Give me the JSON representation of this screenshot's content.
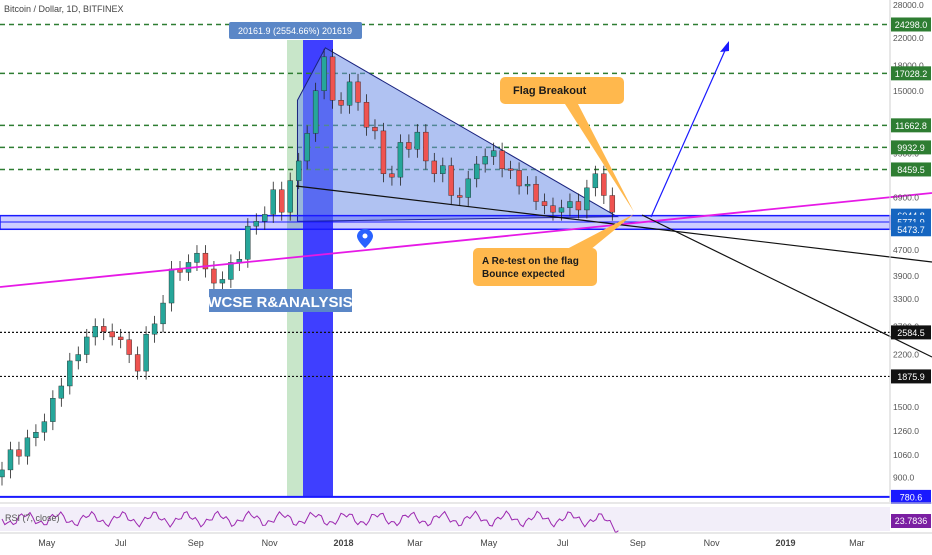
{
  "header": {
    "title": "Bitcoin / Dollar, 1D, BITFINEX"
  },
  "annotations": {
    "range_box": "20161.9 (2554.66%) 201619",
    "watermark": "WCSE R&ANALYSIS",
    "flag_breakout": "Flag Breakout",
    "retest_line1": "A Re-test on the flag",
    "retest_line2": "Bounce expected"
  },
  "indicator": {
    "label": "RSI (7, close)",
    "value": "23.7836"
  },
  "colors": {
    "background": "#ffffff",
    "candle_up": "#26a69a",
    "candle_down": "#ef5350",
    "grid_dash": "#2e7d32",
    "price_tag": "#2e7d32",
    "flag_fill": "#6f8fe8",
    "support_band": "#1a1aff",
    "trend_magenta": "#e619e6",
    "callout": "#ffb84d",
    "rsi_line": "#9c27b0"
  },
  "chart_data": {
    "type": "candlestick",
    "title": "Bitcoin / Dollar, 1D, BITFINEX",
    "y_scale": "log",
    "ylim": [
      780,
      28000
    ],
    "y_ticks": [
      "28000.0",
      "22000.0",
      "18000.0",
      "15000.0",
      "12000.0",
      "9500.0",
      "6900.0",
      "4700.0",
      "3900.0",
      "3300.0",
      "2700.0",
      "2200.0",
      "1500.0",
      "1260.0",
      "1060.0",
      "900.0"
    ],
    "x_ticks": [
      "May",
      "Jul",
      "Sep",
      "Nov",
      "2018",
      "Mar",
      "May",
      "Jul",
      "Sep",
      "Nov",
      "2019",
      "Mar"
    ],
    "horizontal_levels": [
      {
        "value": 24298.0,
        "label": "24298.0",
        "style": "dashed"
      },
      {
        "value": 17028.2,
        "label": "17028.2",
        "style": "dashed"
      },
      {
        "value": 11662.8,
        "label": "11662.8",
        "style": "dashed"
      },
      {
        "value": 9932.9,
        "label": "9932.9",
        "style": "dashed"
      },
      {
        "value": 8459.5,
        "label": "8459.5",
        "style": "dashed"
      },
      {
        "value": 6044.8,
        "label": "6044.8",
        "style": "band"
      },
      {
        "value": 5771.9,
        "label": "5771.9",
        "style": "band"
      },
      {
        "value": 5473.7,
        "label": "5473.7",
        "style": "band"
      },
      {
        "value": 2584.5,
        "label": "2584.5",
        "style": "dotted"
      },
      {
        "value": 1875.9,
        "label": "1875.9",
        "style": "dotted"
      },
      {
        "value": 780.6,
        "label": "780.6",
        "style": "solid"
      }
    ],
    "series": [
      {
        "name": "BTCUSD",
        "dates": [
          "2017-03-25",
          "2017-04-01",
          "2017-04-08",
          "2017-04-15",
          "2017-04-22",
          "2017-04-29",
          "2017-05-06",
          "2017-05-13",
          "2017-05-20",
          "2017-05-27",
          "2017-06-03",
          "2017-06-10",
          "2017-06-17",
          "2017-06-24",
          "2017-07-01",
          "2017-07-08",
          "2017-07-15",
          "2017-07-22",
          "2017-07-29",
          "2017-08-05",
          "2017-08-12",
          "2017-08-19",
          "2017-08-26",
          "2017-09-02",
          "2017-09-09",
          "2017-09-16",
          "2017-09-23",
          "2017-09-30",
          "2017-10-07",
          "2017-10-14",
          "2017-10-21",
          "2017-10-28",
          "2017-11-04",
          "2017-11-11",
          "2017-11-18",
          "2017-11-25",
          "2017-12-02",
          "2017-12-09",
          "2017-12-16",
          "2017-12-23",
          "2017-12-30",
          "2018-01-06",
          "2018-01-13",
          "2018-01-20",
          "2018-01-27",
          "2018-02-03",
          "2018-02-10",
          "2018-02-17",
          "2018-02-24",
          "2018-03-03",
          "2018-03-10",
          "2018-03-17",
          "2018-03-24",
          "2018-03-31",
          "2018-04-07",
          "2018-04-14",
          "2018-04-21",
          "2018-04-28",
          "2018-05-05",
          "2018-05-12",
          "2018-05-19",
          "2018-05-26",
          "2018-06-02",
          "2018-06-09",
          "2018-06-16",
          "2018-06-23",
          "2018-06-30",
          "2018-07-07",
          "2018-07-14",
          "2018-07-21",
          "2018-07-28",
          "2018-08-04",
          "2018-08-11"
        ],
        "close": [
          950,
          1100,
          1050,
          1200,
          1250,
          1350,
          1600,
          1750,
          2100,
          2200,
          2500,
          2700,
          2600,
          2500,
          2450,
          2200,
          1950,
          2550,
          2750,
          3200,
          4100,
          4000,
          4300,
          4600,
          4100,
          3700,
          3800,
          4300,
          4400,
          5600,
          5800,
          6100,
          7300,
          6200,
          7800,
          9000,
          11000,
          15000,
          19200,
          14000,
          13500,
          16000,
          13800,
          11500,
          11200,
          8200,
          8000,
          10300,
          9800,
          11100,
          9000,
          8200,
          8700,
          7000,
          6900,
          7900,
          8800,
          9300,
          9700,
          8500,
          8400,
          7500,
          7600,
          6700,
          6500,
          6200,
          6400,
          6700,
          6300,
          7400,
          8200,
          7000,
          6200
        ]
      }
    ]
  }
}
